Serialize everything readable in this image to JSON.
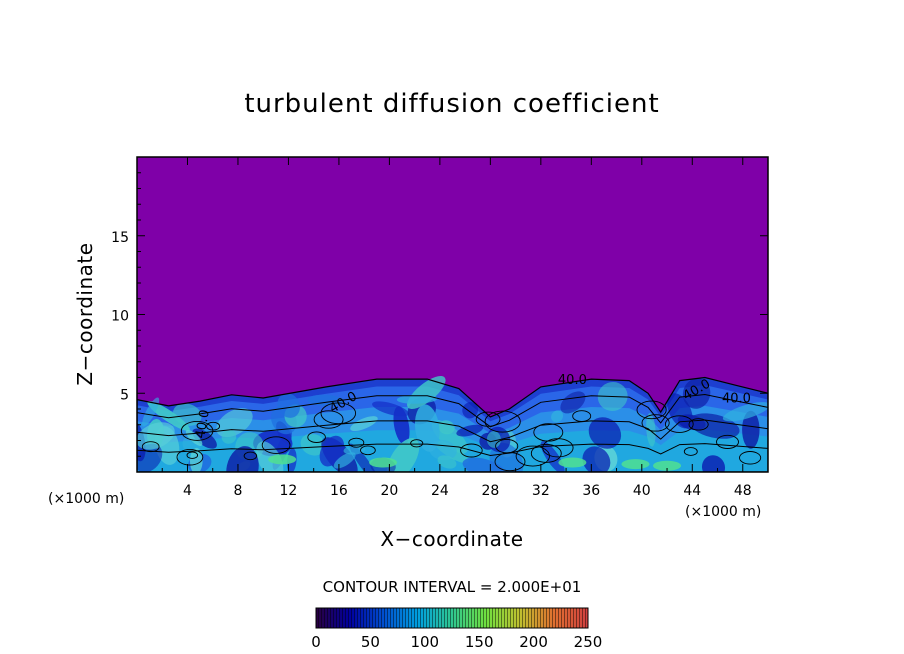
{
  "chart_data": {
    "type": "heatmap",
    "title": "turbulent diffusion coefficient",
    "xlabel": "X−coordinate",
    "ylabel": "Z−coordinate",
    "x_unit_left": "(×1000 m)",
    "x_unit_right": "(×1000 m)",
    "xlim": [
      0,
      50
    ],
    "ylim": [
      0,
      20
    ],
    "xticks": [
      4,
      8,
      12,
      16,
      20,
      24,
      28,
      32,
      36,
      40,
      44,
      48
    ],
    "yticks": [
      5,
      10,
      15
    ],
    "contour_interval_text": "CONTOUR INTERVAL = 2.000E+01",
    "contour_labels": [
      "40.0",
      "40.0",
      "40.0",
      "40.0",
      "40.0"
    ],
    "colorbar": {
      "min": 0,
      "max": 250,
      "ticks": [
        0,
        50,
        100,
        150,
        200,
        250
      ],
      "colors": [
        "#2a0040",
        "#0000a0",
        "#0050d0",
        "#00a0e0",
        "#30c890",
        "#70e040",
        "#c0c030",
        "#e07030",
        "#d04040"
      ]
    },
    "background_value": 0,
    "background_color": "#7f00a8",
    "turbulent_layer_top_km": [
      4.6,
      4.2,
      4.5,
      4.9,
      4.7,
      5.4,
      5.9,
      5.9,
      5.3,
      3.5,
      4.0,
      5.4,
      5.9,
      5.8,
      5.0,
      3.8,
      5.8,
      6.0,
      5.5,
      5.0
    ],
    "turbulent_layer_x_km": [
      0,
      2.5,
      5,
      7.5,
      10,
      15,
      19,
      23,
      25.5,
      28,
      29.5,
      32,
      36,
      39,
      40.5,
      41.5,
      43,
      45,
      47.5,
      50
    ]
  }
}
